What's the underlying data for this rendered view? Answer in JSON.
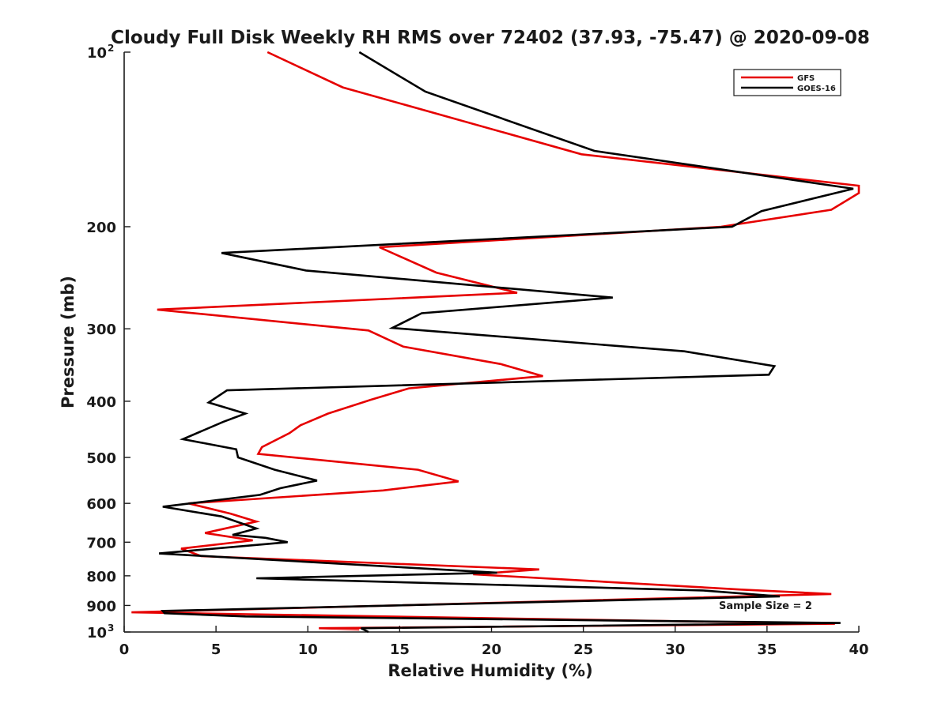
{
  "chart_data": {
    "type": "line",
    "title": "Cloudy Full Disk Weekly RH RMS over 72402 (37.93, -75.47) @ 2020-09-08",
    "xlabel": "Relative Humidity (%)",
    "ylabel": "Pressure (mb)",
    "xlim": [
      0,
      40
    ],
    "ylim": [
      100,
      1000
    ],
    "y_scale": "log",
    "y_reversed": true,
    "x_ticks": [
      0,
      5,
      10,
      15,
      20,
      25,
      30,
      35,
      40
    ],
    "y_ticks": [
      {
        "value": 100,
        "label": "10",
        "sup": "2"
      },
      {
        "value": 200,
        "label": "200"
      },
      {
        "value": 300,
        "label": "300"
      },
      {
        "value": 400,
        "label": "400"
      },
      {
        "value": 500,
        "label": "500"
      },
      {
        "value": 600,
        "label": "600"
      },
      {
        "value": 700,
        "label": "700"
      },
      {
        "value": 800,
        "label": "800"
      },
      {
        "value": 900,
        "label": "900"
      },
      {
        "value": 1000,
        "label": "10",
        "sup": "3"
      }
    ],
    "grid": false,
    "legend_position": "top-right",
    "annotation": "Sample Size = 2",
    "series": [
      {
        "name": "GFS",
        "color": "#e60000",
        "points": [
          [
            7.8,
            100
          ],
          [
            11.9,
            115
          ],
          [
            24.9,
            150
          ],
          [
            40.0,
            170
          ],
          [
            40.0,
            175
          ],
          [
            38.5,
            187
          ],
          [
            32.5,
            200
          ],
          [
            13.9,
            217
          ],
          [
            17.0,
            240
          ],
          [
            21.4,
            260
          ],
          [
            1.8,
            278
          ],
          [
            13.3,
            302
          ],
          [
            15.2,
            322
          ],
          [
            20.5,
            345
          ],
          [
            22.8,
            362
          ],
          [
            15.5,
            380
          ],
          [
            13.4,
            398
          ],
          [
            11.1,
            420
          ],
          [
            9.6,
            440
          ],
          [
            9.0,
            454
          ],
          [
            7.5,
            480
          ],
          [
            7.3,
            493
          ],
          [
            16.0,
            525
          ],
          [
            18.2,
            550
          ],
          [
            14.1,
            570
          ],
          [
            3.5,
            600
          ],
          [
            5.8,
            625
          ],
          [
            7.2,
            645
          ],
          [
            4.4,
            675
          ],
          [
            7.0,
            695
          ],
          [
            3.1,
            718
          ],
          [
            4.2,
            740
          ],
          [
            22.6,
            780
          ],
          [
            19.0,
            795
          ],
          [
            33.6,
            845
          ],
          [
            38.5,
            860
          ],
          [
            0.4,
            925
          ],
          [
            38.7,
            968
          ],
          [
            10.6,
            985
          ],
          [
            12.8,
            990
          ]
        ]
      },
      {
        "name": "GOES-16",
        "color": "#000000",
        "points": [
          [
            12.8,
            100
          ],
          [
            16.4,
            117
          ],
          [
            25.6,
            148
          ],
          [
            39.7,
            172
          ],
          [
            34.7,
            188
          ],
          [
            33.1,
            200
          ],
          [
            5.3,
            222
          ],
          [
            9.9,
            238
          ],
          [
            26.6,
            265
          ],
          [
            16.2,
            282
          ],
          [
            14.6,
            299
          ],
          [
            30.5,
            328
          ],
          [
            35.4,
            348
          ],
          [
            35.1,
            360
          ],
          [
            5.6,
            383
          ],
          [
            4.6,
            402
          ],
          [
            6.6,
            420
          ],
          [
            5.4,
            434
          ],
          [
            3.2,
            465
          ],
          [
            6.1,
            484
          ],
          [
            6.2,
            500
          ],
          [
            8.2,
            525
          ],
          [
            10.5,
            548
          ],
          [
            8.5,
            565
          ],
          [
            7.4,
            580
          ],
          [
            2.1,
            608
          ],
          [
            5.3,
            632
          ],
          [
            7.2,
            663
          ],
          [
            5.9,
            680
          ],
          [
            7.7,
            688
          ],
          [
            8.9,
            700
          ],
          [
            1.9,
            732
          ],
          [
            20.3,
            790
          ],
          [
            7.2,
            808
          ],
          [
            31.5,
            848
          ],
          [
            35.7,
            868
          ],
          [
            2.1,
            920
          ],
          [
            2.2,
            928
          ],
          [
            6.6,
            940
          ],
          [
            39.0,
            965
          ],
          [
            12.9,
            985
          ],
          [
            13.3,
            1000
          ]
        ]
      }
    ]
  }
}
